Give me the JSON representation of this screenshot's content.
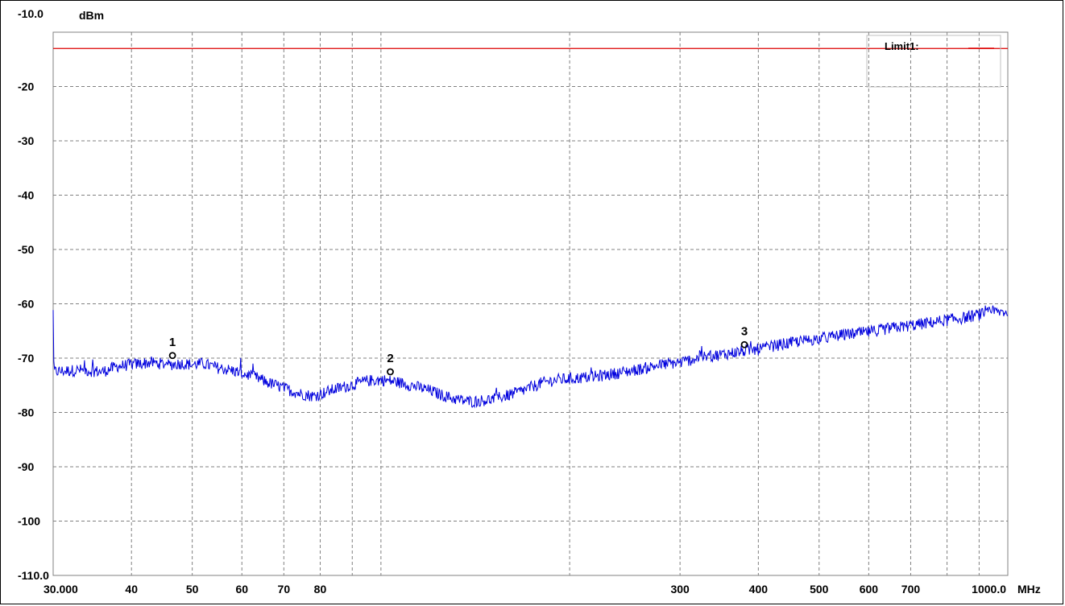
{
  "chart_data": {
    "type": "line",
    "title": "",
    "xlabel": "",
    "ylabel": "",
    "x_unit": "MHz",
    "y_unit": "dBm",
    "x_scale": "log",
    "xlim": [
      30,
      1000
    ],
    "ylim": [
      -110,
      -10
    ],
    "grid": true,
    "y_ticks": [
      {
        "value": -10,
        "label": "-10.0"
      },
      {
        "value": -20,
        "label": "-20"
      },
      {
        "value": -30,
        "label": "-30"
      },
      {
        "value": -40,
        "label": "-40"
      },
      {
        "value": -50,
        "label": "-50"
      },
      {
        "value": -60,
        "label": "-60"
      },
      {
        "value": -70,
        "label": "-70"
      },
      {
        "value": -80,
        "label": "-80"
      },
      {
        "value": -90,
        "label": "-90"
      },
      {
        "value": -100,
        "label": "-100"
      },
      {
        "value": -110,
        "label": "-110.0"
      }
    ],
    "x_ticks": [
      {
        "value": 30,
        "label": "30.000"
      },
      {
        "value": 40,
        "label": "40"
      },
      {
        "value": 50,
        "label": "50"
      },
      {
        "value": 60,
        "label": "60"
      },
      {
        "value": 70,
        "label": "70"
      },
      {
        "value": 80,
        "label": "80"
      },
      {
        "value": 300,
        "label": "300"
      },
      {
        "value": 400,
        "label": "400"
      },
      {
        "value": 500,
        "label": "500"
      },
      {
        "value": 600,
        "label": "600"
      },
      {
        "value": 700,
        "label": "700"
      },
      {
        "value": 1000,
        "label": "1000.0"
      }
    ],
    "x_grid": [
      30,
      40,
      50,
      60,
      70,
      80,
      90,
      100,
      200,
      300,
      400,
      500,
      600,
      700,
      800,
      900,
      1000
    ],
    "limit": {
      "name": "Limit1:",
      "value": -13,
      "color": "#dd0000"
    },
    "legend_position": "top-right",
    "series": [
      {
        "color": "#0000dd",
        "x": [
          30,
          33,
          36,
          38,
          40,
          43,
          46,
          48,
          50,
          52,
          55,
          58,
          60,
          63,
          66,
          70,
          74,
          78,
          80,
          84,
          88,
          92,
          95,
          100,
          105,
          110,
          115,
          120,
          125,
          130,
          135,
          140,
          150,
          160,
          170,
          180,
          190,
          200,
          220,
          240,
          260,
          280,
          300,
          320,
          350,
          380,
          400,
          420,
          450,
          500,
          550,
          600,
          650,
          700,
          750,
          800,
          850,
          900,
          950,
          1000
        ],
        "y": [
          -72.5,
          -72.2,
          -72.5,
          -71.5,
          -71.2,
          -70.8,
          -71.2,
          -71.0,
          -71.2,
          -71.0,
          -71.8,
          -72.3,
          -72.8,
          -73.5,
          -74.5,
          -75.5,
          -76.5,
          -77.0,
          -76.6,
          -75.8,
          -75.2,
          -74.6,
          -74.2,
          -74.0,
          -74.3,
          -74.8,
          -75.4,
          -76.0,
          -76.8,
          -77.4,
          -77.8,
          -78.0,
          -77.6,
          -76.8,
          -75.8,
          -74.6,
          -74.0,
          -73.8,
          -73.4,
          -72.7,
          -72.0,
          -71.2,
          -70.8,
          -70.0,
          -69.3,
          -68.7,
          -68.4,
          -67.8,
          -67.2,
          -66.4,
          -65.7,
          -65.2,
          -64.5,
          -64.0,
          -63.5,
          -63.0,
          -62.6,
          -62.0,
          -61.5,
          -61.5
        ]
      }
    ],
    "markers": [
      {
        "label": "1",
        "x": 46.5,
        "y": -71.0
      },
      {
        "label": "2",
        "x": 103.5,
        "y": -74.0
      },
      {
        "label": "3",
        "x": 380,
        "y": -69.0
      }
    ]
  }
}
